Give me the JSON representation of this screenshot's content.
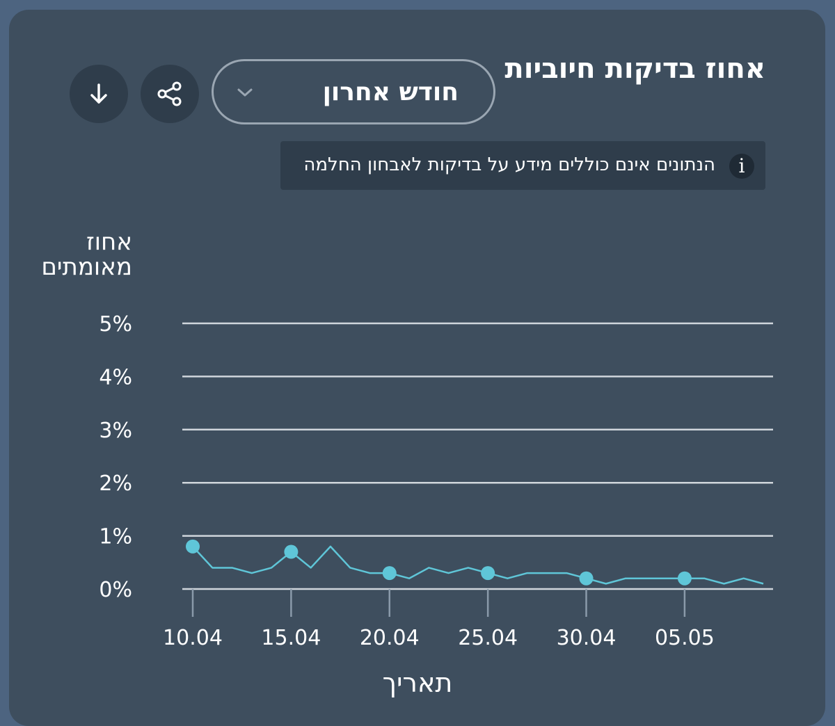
{
  "header": {
    "title": "אחוז בדיקות חיוביות",
    "period": "חודש אחרון",
    "notice": "הנתונים אינם כוללים מידע על בדיקות לאבחון החלמה"
  },
  "colors": {
    "background": "#4d6480",
    "card": "#3e4e5e",
    "line": "#5fc6d8",
    "grid": "#d0d6dc"
  },
  "icons": {
    "share": "share-icon",
    "download": "download-icon",
    "info": "info-icon",
    "chevron": "chevron-down-icon"
  },
  "chart_data": {
    "type": "line",
    "title": "אחוז בדיקות חיוביות",
    "xlabel": "תאריך",
    "ylabel": "אחוז מאומתים",
    "ylim": [
      0,
      5
    ],
    "yticks": [
      "0%",
      "1%",
      "2%",
      "3%",
      "4%",
      "5%"
    ],
    "xticks": [
      "10.04",
      "15.04",
      "20.04",
      "25.04",
      "30.04",
      "05.05"
    ],
    "grid": true,
    "series": [
      {
        "x": [
          "10.04",
          "11.04",
          "12.04",
          "13.04",
          "14.04",
          "15.04",
          "16.04",
          "17.04",
          "18.04",
          "19.04",
          "20.04",
          "21.04",
          "22.04",
          "23.04",
          "24.04",
          "25.04",
          "26.04",
          "27.04",
          "28.04",
          "29.04",
          "30.04",
          "01.05",
          "02.05",
          "03.05",
          "04.05",
          "05.05",
          "06.05",
          "07.05",
          "08.05",
          "09.05"
        ],
        "values": [
          0.8,
          0.4,
          0.4,
          0.3,
          0.4,
          0.7,
          0.4,
          0.8,
          0.4,
          0.3,
          0.3,
          0.2,
          0.4,
          0.3,
          0.4,
          0.3,
          0.2,
          0.3,
          0.3,
          0.3,
          0.2,
          0.1,
          0.2,
          0.2,
          0.2,
          0.2,
          0.2,
          0.1,
          0.2,
          0.1
        ],
        "marked": [
          "10.04",
          "15.04",
          "20.04",
          "25.04",
          "30.04",
          "05.05"
        ]
      }
    ]
  }
}
